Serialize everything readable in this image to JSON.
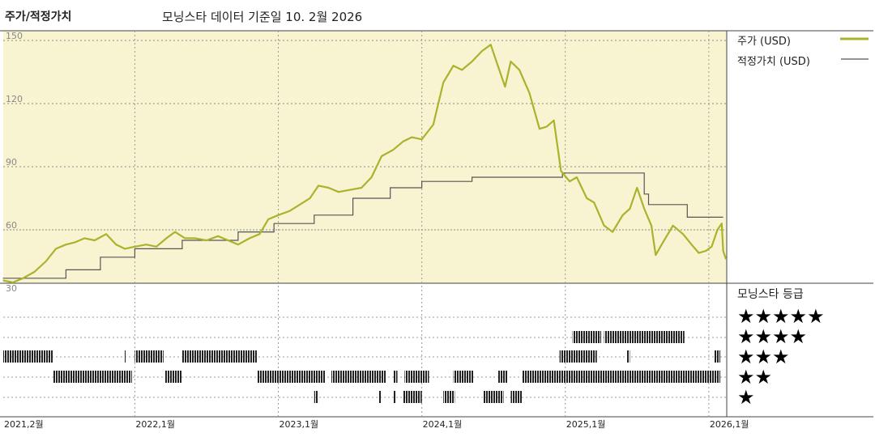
{
  "header": {
    "title": "주가/적정가치",
    "subtitle": "모닝스타 데이터 기준일 10. 2월 2026"
  },
  "legend": {
    "price_label": "주가 (USD)",
    "fair_label": "적정가치 (USD)"
  },
  "rating": {
    "title": "모닝스타 등급",
    "levels": [
      "★★★★★",
      "★★★★",
      "★★★",
      "★★",
      "★"
    ]
  },
  "colors": {
    "plot_bg": "#f8f4d2",
    "price_line": "#a9b32b",
    "fair_line": "#555555",
    "rating_bar": "#222222"
  },
  "chart_data": {
    "type": "line",
    "title": "주가/적정가치",
    "subtitle": "모닝스타 데이터 기준일 10. 2월 2026",
    "x_start": "2021-02",
    "x_end": "2026-02",
    "x_ticks": [
      {
        "label": "2021,2월",
        "x": 2021.083
      },
      {
        "label": "2022,1월",
        "x": 2022.0
      },
      {
        "label": "2023,1월",
        "x": 2023.0
      },
      {
        "label": "2024,1월",
        "x": 2024.0
      },
      {
        "label": "2025,1월",
        "x": 2025.0
      },
      {
        "label": "2026,1월",
        "x": 2026.0
      }
    ],
    "y_ticks": [
      30,
      60,
      90,
      120,
      150
    ],
    "ylim": [
      30,
      150
    ],
    "grid": true,
    "legend_position": "top-right",
    "series": [
      {
        "name": "주가 (USD)",
        "points": [
          [
            2021.08,
            36
          ],
          [
            2021.15,
            35
          ],
          [
            2021.22,
            37
          ],
          [
            2021.3,
            40
          ],
          [
            2021.38,
            45
          ],
          [
            2021.45,
            51
          ],
          [
            2021.52,
            53
          ],
          [
            2021.58,
            54
          ],
          [
            2021.65,
            56
          ],
          [
            2021.72,
            55
          ],
          [
            2021.8,
            58
          ],
          [
            2021.87,
            53
          ],
          [
            2021.93,
            51
          ],
          [
            2022.0,
            52
          ],
          [
            2022.08,
            53
          ],
          [
            2022.15,
            52
          ],
          [
            2022.22,
            56
          ],
          [
            2022.28,
            59
          ],
          [
            2022.35,
            56
          ],
          [
            2022.42,
            56
          ],
          [
            2022.5,
            55
          ],
          [
            2022.58,
            57
          ],
          [
            2022.65,
            55
          ],
          [
            2022.72,
            53
          ],
          [
            2022.8,
            56
          ],
          [
            2022.87,
            58
          ],
          [
            2022.93,
            65
          ],
          [
            2023.0,
            67
          ],
          [
            2023.08,
            69
          ],
          [
            2023.15,
            72
          ],
          [
            2023.22,
            75
          ],
          [
            2023.28,
            81
          ],
          [
            2023.35,
            80
          ],
          [
            2023.42,
            78
          ],
          [
            2023.5,
            79
          ],
          [
            2023.58,
            80
          ],
          [
            2023.65,
            85
          ],
          [
            2023.72,
            95
          ],
          [
            2023.8,
            98
          ],
          [
            2023.87,
            102
          ],
          [
            2023.93,
            104
          ],
          [
            2024.0,
            103
          ],
          [
            2024.08,
            110
          ],
          [
            2024.15,
            130
          ],
          [
            2024.22,
            138
          ],
          [
            2024.28,
            136
          ],
          [
            2024.35,
            140
          ],
          [
            2024.42,
            145
          ],
          [
            2024.48,
            148
          ],
          [
            2024.52,
            140
          ],
          [
            2024.58,
            128
          ],
          [
            2024.62,
            140
          ],
          [
            2024.68,
            136
          ],
          [
            2024.75,
            125
          ],
          [
            2024.82,
            108
          ],
          [
            2024.87,
            109
          ],
          [
            2024.92,
            112
          ],
          [
            2024.97,
            88
          ],
          [
            2025.03,
            83
          ],
          [
            2025.08,
            85
          ],
          [
            2025.15,
            75
          ],
          [
            2025.2,
            73
          ],
          [
            2025.27,
            62
          ],
          [
            2025.33,
            59
          ],
          [
            2025.4,
            67
          ],
          [
            2025.45,
            70
          ],
          [
            2025.5,
            80
          ],
          [
            2025.55,
            70
          ],
          [
            2025.6,
            62
          ],
          [
            2025.63,
            48
          ],
          [
            2025.68,
            54
          ],
          [
            2025.75,
            62
          ],
          [
            2025.82,
            58
          ],
          [
            2025.88,
            53
          ],
          [
            2025.93,
            49
          ],
          [
            2025.98,
            50
          ],
          [
            2026.02,
            52
          ],
          [
            2026.06,
            60
          ],
          [
            2026.09,
            63
          ],
          [
            2026.1,
            50
          ],
          [
            2026.12,
            46
          ]
        ]
      },
      {
        "name": "적정가치 (USD)",
        "points": [
          [
            2021.08,
            37
          ],
          [
            2021.52,
            37
          ],
          [
            2021.52,
            41
          ],
          [
            2021.76,
            41
          ],
          [
            2021.76,
            47
          ],
          [
            2022.0,
            47
          ],
          [
            2022.0,
            51
          ],
          [
            2022.33,
            51
          ],
          [
            2022.33,
            55
          ],
          [
            2022.72,
            55
          ],
          [
            2022.72,
            59
          ],
          [
            2022.97,
            59
          ],
          [
            2022.97,
            63
          ],
          [
            2023.25,
            63
          ],
          [
            2023.25,
            67
          ],
          [
            2023.52,
            67
          ],
          [
            2023.52,
            75
          ],
          [
            2023.78,
            75
          ],
          [
            2023.78,
            80
          ],
          [
            2024.0,
            80
          ],
          [
            2024.0,
            83
          ],
          [
            2024.35,
            83
          ],
          [
            2024.35,
            85
          ],
          [
            2024.98,
            85
          ],
          [
            2024.98,
            87
          ],
          [
            2025.55,
            87
          ],
          [
            2025.55,
            77
          ],
          [
            2025.58,
            77
          ],
          [
            2025.58,
            72
          ],
          [
            2025.85,
            72
          ],
          [
            2025.85,
            66
          ],
          [
            2026.1,
            66
          ]
        ]
      }
    ],
    "rating_history": [
      {
        "stars": 4,
        "ranges": [
          [
            2025.05,
            2025.25
          ],
          [
            2025.27,
            2025.83
          ],
          [
            2026.09,
            2026.11
          ]
        ]
      },
      {
        "stars": 3,
        "ranges": [
          [
            2021.08,
            2021.43
          ],
          [
            2021.93,
            2021.94
          ],
          [
            2022.0,
            2022.2
          ],
          [
            2022.33,
            2022.85
          ],
          [
            2024.96,
            2025.22
          ],
          [
            2025.43,
            2025.45
          ],
          [
            2026.04,
            2026.11
          ]
        ]
      },
      {
        "stars": 2,
        "ranges": [
          [
            2021.43,
            2021.98
          ],
          [
            2022.21,
            2022.33
          ],
          [
            2022.85,
            2023.33
          ],
          [
            2023.37,
            2023.75
          ],
          [
            2023.8,
            2023.83
          ],
          [
            2023.88,
            2024.05
          ],
          [
            2024.22,
            2024.36
          ],
          [
            2024.53,
            2024.6
          ],
          [
            2024.7,
            2724.7
          ],
          [
            2024.75,
            2024.96
          ]
        ]
      },
      {
        "stars": 1,
        "ranges": [
          [
            2023.25,
            2023.28
          ],
          [
            2023.7,
            2023.72
          ],
          [
            2023.8,
            2023.82
          ],
          [
            2023.87,
            2024.0
          ],
          [
            2024.15,
            2024.23
          ],
          [
            2024.43,
            2024.57
          ],
          [
            2024.62,
            2024.7
          ]
        ]
      }
    ]
  }
}
